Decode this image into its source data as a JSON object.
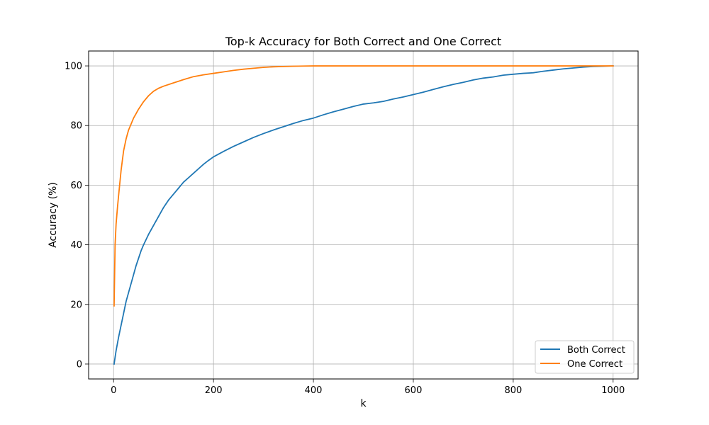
{
  "chart_data": {
    "type": "line",
    "title": "Top-k Accuracy for Both Correct and One Correct",
    "xlabel": "k",
    "ylabel": "Accuracy (%)",
    "xlim": [
      -50,
      1050
    ],
    "ylim": [
      -5,
      105
    ],
    "xticks": [
      0,
      200,
      400,
      600,
      800,
      1000
    ],
    "yticks": [
      0,
      20,
      40,
      60,
      80,
      100
    ],
    "grid": true,
    "legend_position": "bottom-right",
    "series": [
      {
        "name": "Both Correct",
        "color": "#1f77b4",
        "x": [
          1,
          5,
          10,
          15,
          20,
          25,
          30,
          35,
          40,
          45,
          50,
          55,
          60,
          70,
          80,
          90,
          100,
          110,
          120,
          130,
          140,
          150,
          160,
          170,
          180,
          190,
          200,
          220,
          240,
          260,
          280,
          300,
          320,
          340,
          360,
          380,
          400,
          420,
          440,
          460,
          480,
          500,
          520,
          540,
          560,
          580,
          600,
          620,
          640,
          660,
          680,
          700,
          720,
          740,
          760,
          780,
          800,
          820,
          840,
          860,
          880,
          900,
          920,
          940,
          960,
          980,
          1000
        ],
        "y": [
          0,
          4.5,
          9,
          13,
          17,
          21,
          24,
          27,
          30,
          33,
          35.5,
          38,
          40,
          43.5,
          46.5,
          49.5,
          52.5,
          55,
          57,
          59,
          61,
          62.5,
          64,
          65.5,
          67,
          68.3,
          69.5,
          71.3,
          73,
          74.5,
          76,
          77.3,
          78.5,
          79.6,
          80.7,
          81.7,
          82.5,
          83.6,
          84.6,
          85.5,
          86.4,
          87.2,
          87.6,
          88.1,
          88.9,
          89.6,
          90.4,
          91.2,
          92.1,
          93,
          93.8,
          94.5,
          95.3,
          95.9,
          96.3,
          96.9,
          97.2,
          97.5,
          97.7,
          98.2,
          98.6,
          99,
          99.3,
          99.6,
          99.8,
          99.9,
          100
        ]
      },
      {
        "name": "One Correct",
        "color": "#ff7f0e",
        "x": [
          1,
          3,
          5,
          8,
          10,
          15,
          20,
          25,
          30,
          35,
          40,
          45,
          50,
          60,
          70,
          80,
          90,
          100,
          120,
          140,
          160,
          180,
          200,
          220,
          240,
          260,
          280,
          300,
          320,
          340,
          360,
          380,
          400,
          450,
          500,
          550,
          600,
          650,
          700,
          750,
          800,
          850,
          900,
          950,
          1000
        ],
        "y": [
          19.5,
          40,
          47,
          53,
          56.5,
          65,
          71.5,
          75.5,
          78.5,
          80.5,
          82.5,
          84,
          85.5,
          88,
          90,
          91.5,
          92.5,
          93.2,
          94.3,
          95.4,
          96.4,
          97,
          97.5,
          98,
          98.5,
          98.9,
          99.2,
          99.5,
          99.7,
          99.8,
          99.9,
          99.95,
          100,
          100,
          100,
          100,
          100,
          100,
          100,
          100,
          100,
          100,
          100,
          100,
          100
        ]
      }
    ]
  }
}
